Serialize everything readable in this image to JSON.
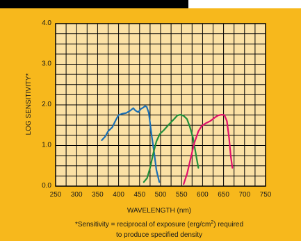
{
  "colors": {
    "background": "#f7b81c",
    "plot_area": "#fbe1a5",
    "grid": "#000000",
    "corner": "#000000"
  },
  "footnote": {
    "line1_prefix": "*Sensitivity = reciprocal of exposure (erg/cm",
    "line1_sup": "2",
    "line1_suffix": ") required",
    "line2": "to produce specified density"
  },
  "chart_data": {
    "type": "line",
    "title": "",
    "xlabel": "WAVELENGTH (nm)",
    "ylabel": "LOG SENSITIVITY*",
    "xlim": [
      250,
      750
    ],
    "ylim": [
      0.0,
      4.0
    ],
    "xticks": [
      "250",
      "300",
      "350",
      "400",
      "450",
      "500",
      "550",
      "600",
      "650",
      "700",
      "750"
    ],
    "yticks": [
      "0.0",
      "1.0",
      "2.0",
      "3.0",
      "4.0"
    ],
    "grid": true,
    "series": [
      {
        "color": "#1a6fb5",
        "points": [
          [
            360,
            1.13
          ],
          [
            368,
            1.22
          ],
          [
            375,
            1.35
          ],
          [
            385,
            1.45
          ],
          [
            393,
            1.62
          ],
          [
            400,
            1.75
          ],
          [
            408,
            1.78
          ],
          [
            418,
            1.8
          ],
          [
            428,
            1.86
          ],
          [
            435,
            1.92
          ],
          [
            440,
            1.86
          ],
          [
            447,
            1.82
          ],
          [
            453,
            1.9
          ],
          [
            458,
            1.93
          ],
          [
            463,
            1.97
          ],
          [
            467,
            1.95
          ],
          [
            472,
            1.8
          ],
          [
            478,
            1.3
          ],
          [
            485,
            0.8
          ],
          [
            490,
            0.4
          ],
          [
            497,
            0.1
          ]
        ]
      },
      {
        "color": "#1f8f3a",
        "points": [
          [
            460,
            0.1
          ],
          [
            468,
            0.2
          ],
          [
            475,
            0.45
          ],
          [
            482,
            0.78
          ],
          [
            490,
            1.1
          ],
          [
            498,
            1.28
          ],
          [
            508,
            1.38
          ],
          [
            520,
            1.52
          ],
          [
            532,
            1.65
          ],
          [
            540,
            1.74
          ],
          [
            547,
            1.76
          ],
          [
            555,
            1.73
          ],
          [
            563,
            1.65
          ],
          [
            570,
            1.45
          ],
          [
            577,
            1.2
          ],
          [
            583,
            0.85
          ],
          [
            590,
            0.45
          ]
        ]
      },
      {
        "color": "#e0106a",
        "points": [
          [
            555,
            0.05
          ],
          [
            563,
            0.3
          ],
          [
            572,
            0.7
          ],
          [
            580,
            1.05
          ],
          [
            590,
            1.35
          ],
          [
            598,
            1.48
          ],
          [
            608,
            1.55
          ],
          [
            618,
            1.6
          ],
          [
            628,
            1.68
          ],
          [
            637,
            1.74
          ],
          [
            645,
            1.76
          ],
          [
            652,
            1.75
          ],
          [
            658,
            1.6
          ],
          [
            663,
            1.2
          ],
          [
            667,
            0.75
          ],
          [
            671,
            0.45
          ]
        ]
      }
    ]
  }
}
